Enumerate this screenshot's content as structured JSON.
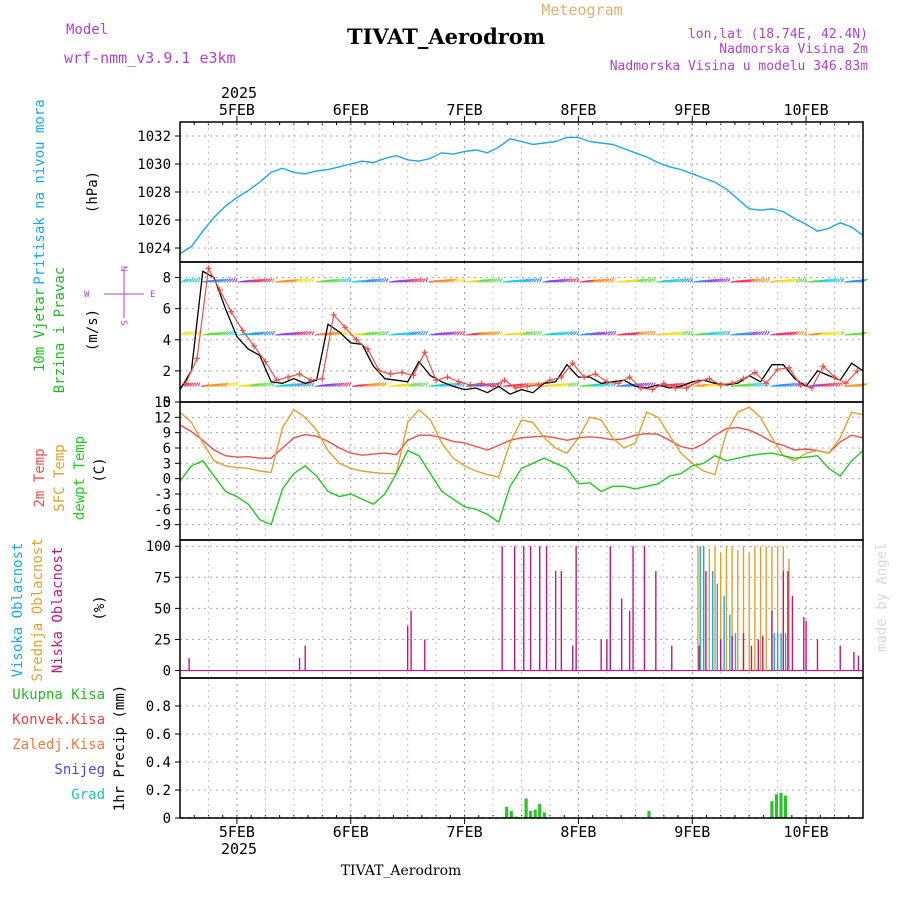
{
  "header": {
    "model_label": "Model",
    "model_name": "wrf-nmm_v3.9.1 e3km",
    "title": "TIVAT_Aerodrom",
    "subtitle": "Meteogram",
    "coords": "lon,lat (18.74E, 42.4N)",
    "elevation": "Nadmorska Visina 2m",
    "model_elevation": "Nadmorska Visina u modelu 346.83m",
    "watermark": "made by Angel",
    "footer": "TIVAT_Aerodrom"
  },
  "colors": {
    "pressure": "#1aa7e8",
    "temp2m": "#e8504a",
    "sfc_temp": "#e0a030",
    "dewpoint": "#22c822",
    "high_cloud": "#1aa7e8",
    "mid_cloud": "#e0a030",
    "low_cloud": "#c0187a",
    "precip": "#2ec02e",
    "wind_speed": "#000000",
    "gust": "#e8504a",
    "label_purple": "#b040d0",
    "label_orange": "#e0a040"
  },
  "chart_data": {
    "type": "line",
    "time_axis": {
      "year": "2025",
      "range_days": [
        4.5,
        10.5
      ],
      "ticks": [
        5,
        6,
        7,
        8,
        9,
        10
      ],
      "tick_labels": [
        "5FEB",
        "6FEB",
        "7FEB",
        "8FEB",
        "9FEB",
        "10FEB"
      ]
    },
    "panels": {
      "pressure": {
        "ylabel": "Pritisak na nivou mora",
        "unit": "(hPa)",
        "ylim": [
          1023,
          1033
        ],
        "yticks": [
          1024,
          1026,
          1028,
          1030,
          1032
        ],
        "series": [
          {
            "name": "Pritisak",
            "x": [
              4.5,
              4.6,
              4.7,
              4.8,
              4.9,
              5.0,
              5.1,
              5.2,
              5.3,
              5.4,
              5.5,
              5.6,
              5.7,
              5.8,
              5.9,
              6.0,
              6.1,
              6.2,
              6.3,
              6.4,
              6.5,
              6.6,
              6.7,
              6.8,
              6.9,
              7.0,
              7.1,
              7.2,
              7.3,
              7.4,
              7.5,
              7.6,
              7.7,
              7.8,
              7.9,
              8.0,
              8.1,
              8.2,
              8.3,
              8.4,
              8.5,
              8.6,
              8.7,
              8.8,
              8.9,
              9.0,
              9.1,
              9.2,
              9.3,
              9.4,
              9.5,
              9.6,
              9.7,
              9.8,
              9.9,
              10.0,
              10.1,
              10.2,
              10.3,
              10.4,
              10.5
            ],
            "values": [
              1023.6,
              1024.1,
              1025.2,
              1026.2,
              1027.0,
              1027.6,
              1028.1,
              1028.7,
              1029.4,
              1029.7,
              1029.4,
              1029.3,
              1029.5,
              1029.6,
              1029.8,
              1030.0,
              1030.2,
              1030.1,
              1030.4,
              1030.6,
              1030.3,
              1030.2,
              1030.4,
              1030.8,
              1030.7,
              1030.9,
              1031.0,
              1030.8,
              1031.2,
              1031.8,
              1031.6,
              1031.4,
              1031.5,
              1031.6,
              1031.9,
              1031.9,
              1031.6,
              1031.5,
              1031.4,
              1031.1,
              1030.8,
              1030.5,
              1030.1,
              1029.8,
              1029.6,
              1029.3,
              1029.0,
              1028.7,
              1028.2,
              1027.5,
              1026.8,
              1026.7,
              1026.8,
              1026.6,
              1026.1,
              1025.7,
              1025.2,
              1025.4,
              1025.8,
              1025.5,
              1024.9
            ]
          }
        ]
      },
      "wind": {
        "ylabel_line1": "10m Vjetar",
        "ylabel_line2": "Brzina i Pravac",
        "unit": "(m/s)",
        "compass": [
          "N",
          "E",
          "S",
          "W"
        ],
        "ylim": [
          0,
          9
        ],
        "yticks": [
          0,
          2,
          4,
          6,
          8
        ],
        "barb_levels": [
          1,
          4.3,
          7.7
        ],
        "series": [
          {
            "name": "Brzina vjetra",
            "x": [
              4.5,
              4.6,
              4.7,
              4.8,
              4.9,
              5.0,
              5.1,
              5.2,
              5.3,
              5.4,
              5.5,
              5.6,
              5.7,
              5.8,
              5.9,
              6.0,
              6.1,
              6.2,
              6.3,
              6.4,
              6.5,
              6.6,
              6.7,
              6.8,
              6.9,
              7.0,
              7.1,
              7.2,
              7.3,
              7.4,
              7.5,
              7.6,
              7.7,
              7.8,
              7.9,
              8.0,
              8.1,
              8.2,
              8.3,
              8.4,
              8.5,
              8.6,
              8.7,
              8.8,
              8.9,
              9.0,
              9.1,
              9.2,
              9.3,
              9.4,
              9.5,
              9.6,
              9.7,
              9.8,
              9.9,
              10.0,
              10.1,
              10.2,
              10.3,
              10.4,
              10.5
            ],
            "values": [
              0.8,
              2.0,
              8.4,
              8.0,
              6.0,
              4.2,
              3.4,
              3.0,
              1.3,
              1.2,
              1.5,
              1.2,
              1.4,
              5.0,
              4.5,
              3.8,
              3.7,
              2.3,
              1.5,
              1.4,
              1.3,
              2.6,
              1.7,
              1.3,
              1.0,
              0.8,
              0.9,
              0.6,
              1.0,
              0.5,
              0.8,
              0.6,
              1.2,
              1.3,
              2.4,
              1.6,
              1.6,
              1.2,
              1.3,
              1.4,
              1.0,
              0.9,
              1.1,
              0.9,
              1.0,
              1.3,
              1.4,
              1.2,
              1.1,
              1.2,
              1.7,
              1.3,
              2.4,
              2.4,
              1.5,
              1.0,
              2.0,
              1.7,
              1.4,
              2.5,
              2.0
            ]
          },
          {
            "name": "Udari vjetra",
            "x": [
              4.55,
              4.65,
              4.75,
              4.85,
              4.95,
              5.05,
              5.15,
              5.25,
              5.35,
              5.45,
              5.55,
              5.65,
              5.75,
              5.85,
              5.95,
              6.05,
              6.15,
              6.25,
              6.35,
              6.45,
              6.55,
              6.65,
              6.75,
              6.85,
              6.95,
              7.05,
              7.15,
              7.25,
              7.35,
              7.45,
              7.55,
              7.65,
              7.75,
              7.85,
              7.95,
              8.05,
              8.15,
              8.25,
              8.35,
              8.45,
              8.55,
              8.65,
              8.75,
              8.85,
              8.95,
              9.05,
              9.15,
              9.25,
              9.35,
              9.45,
              9.55,
              9.65,
              9.75,
              9.85,
              9.95,
              10.05,
              10.15,
              10.25,
              10.35,
              10.45
            ],
            "values": [
              1.2,
              2.8,
              8.6,
              7.2,
              5.8,
              4.6,
              3.6,
              2.6,
              1.4,
              1.6,
              1.8,
              1.4,
              1.5,
              5.6,
              4.8,
              4.0,
              3.4,
              2.0,
              1.8,
              1.9,
              1.7,
              3.2,
              1.4,
              1.6,
              1.3,
              1.1,
              1.2,
              1.0,
              1.4,
              0.9,
              1.0,
              1.1,
              1.4,
              1.6,
              2.5,
              1.6,
              1.8,
              1.3,
              1.2,
              1.6,
              0.9,
              0.8,
              1.2,
              0.9,
              0.9,
              1.3,
              1.5,
              1.1,
              1.2,
              1.5,
              1.9,
              1.2,
              2.1,
              2.2,
              1.1,
              0.9,
              2.3,
              1.6,
              1.2,
              2.0
            ]
          }
        ]
      },
      "temperature": {
        "ylabel_line1": "2m Temp",
        "ylabel_line2": "SFC Temp",
        "ylabel_line3": "dewpt Temp",
        "unit": "(C)",
        "ylim": [
          -12,
          15
        ],
        "yticks": [
          -9,
          -6,
          -3,
          0,
          3,
          6,
          9,
          12,
          15
        ],
        "x": [
          4.5,
          4.6,
          4.7,
          4.8,
          4.9,
          5.0,
          5.1,
          5.2,
          5.3,
          5.4,
          5.5,
          5.6,
          5.7,
          5.8,
          5.9,
          6.0,
          6.1,
          6.2,
          6.3,
          6.4,
          6.5,
          6.6,
          6.7,
          6.8,
          6.9,
          7.0,
          7.1,
          7.2,
          7.3,
          7.4,
          7.5,
          7.6,
          7.7,
          7.8,
          7.9,
          8.0,
          8.1,
          8.2,
          8.3,
          8.4,
          8.5,
          8.6,
          8.7,
          8.8,
          8.9,
          9.0,
          9.1,
          9.2,
          9.3,
          9.4,
          9.5,
          9.6,
          9.7,
          9.8,
          9.9,
          10.0,
          10.1,
          10.2,
          10.3,
          10.4,
          10.5
        ],
        "series": [
          {
            "name": "2m Temp",
            "values": [
              10.5,
              9.2,
              7.5,
              5.6,
              4.5,
              4.2,
              4.3,
              4.0,
              4.0,
              6.0,
              8.0,
              8.6,
              8.3,
              7.3,
              6.0,
              5.0,
              4.6,
              4.8,
              5.0,
              4.7,
              7.5,
              8.5,
              8.5,
              8.0,
              7.3,
              7.0,
              6.3,
              5.6,
              6.5,
              7.5,
              8.0,
              8.2,
              8.3,
              8.0,
              7.5,
              8.0,
              8.2,
              8.0,
              7.6,
              7.8,
              8.5,
              8.8,
              8.7,
              7.5,
              6.3,
              5.8,
              6.8,
              8.5,
              9.8,
              10.0,
              9.5,
              8.5,
              7.2,
              6.5,
              5.6,
              5.8,
              5.5,
              5.0,
              7.2,
              8.5,
              8.0
            ]
          },
          {
            "name": "SFC Temp",
            "values": [
              13.0,
              11.0,
              7.0,
              3.5,
              2.5,
              2.2,
              2.0,
              1.5,
              1.2,
              10.0,
              13.5,
              12.0,
              9.5,
              5.5,
              3.0,
              2.0,
              1.5,
              1.2,
              1.0,
              1.0,
              11.0,
              13.5,
              11.5,
              7.0,
              4.0,
              2.5,
              1.5,
              0.8,
              0.3,
              7.0,
              11.5,
              11.0,
              8.0,
              6.0,
              5.0,
              8.0,
              12.0,
              11.5,
              8.0,
              6.0,
              7.0,
              13.0,
              12.0,
              8.5,
              5.0,
              3.0,
              1.5,
              0.8,
              9.0,
              13.0,
              14.0,
              12.0,
              8.0,
              4.5,
              3.5,
              5.0,
              5.5,
              5.0,
              8.0,
              13.0,
              12.5
            ]
          },
          {
            "name": "dewpt Temp",
            "values": [
              -0.5,
              2.5,
              3.5,
              0.5,
              -2.5,
              -3.5,
              -5.0,
              -8.0,
              -9.0,
              -2.0,
              1.0,
              2.5,
              0.5,
              -2.5,
              -3.5,
              -3.0,
              -4.0,
              -5.0,
              -3.0,
              1.0,
              5.5,
              4.5,
              1.0,
              -2.5,
              -4.0,
              -5.5,
              -6.0,
              -7.0,
              -8.5,
              -1.5,
              2.0,
              3.0,
              4.0,
              3.0,
              2.0,
              -1.0,
              -0.8,
              -2.5,
              -1.5,
              -1.5,
              -2.0,
              -1.5,
              -1.0,
              0.5,
              1.0,
              2.5,
              3.0,
              4.5,
              3.5,
              4.0,
              4.5,
              4.8,
              5.0,
              4.5,
              4.0,
              4.2,
              4.5,
              2.0,
              0.5,
              3.5,
              5.5
            ]
          }
        ]
      },
      "clouds": {
        "ylabel_line1": "Visoka Oblacnost",
        "ylabel_line2": "Srednja Oblacnost",
        "ylabel_line3": "Niska Oblacnost",
        "unit": "(%)",
        "ylim": [
          -6,
          105
        ],
        "yticks": [
          0,
          25,
          50,
          75,
          100
        ],
        "series": [
          {
            "name": "Niska Oblacnost",
            "x": [
              4.58,
              5.55,
              5.6,
              6.5,
              6.53,
              6.65,
              7.33,
              7.44,
              7.52,
              7.58,
              7.66,
              7.72,
              7.8,
              7.85,
              7.95,
              7.98,
              8.2,
              8.25,
              8.28,
              8.38,
              8.45,
              8.48,
              8.58,
              8.68,
              8.82,
              9.06,
              9.12,
              9.25,
              9.35,
              9.45,
              9.52,
              9.58,
              9.62,
              9.7,
              9.8,
              9.84,
              9.88,
              9.98,
              10.0,
              10.1,
              10.3,
              10.42,
              10.46
            ],
            "values": [
              10,
              10,
              20,
              36,
              48,
              25,
              100,
              100,
              100,
              100,
              100,
              100,
              80,
              80,
              20,
              100,
              25,
              25,
              100,
              58,
              48,
              100,
              100,
              80,
              20,
              20,
              80,
              25,
              28,
              30,
              20,
              25,
              28,
              48,
              80,
              80,
              60,
              43,
              40,
              25,
              20,
              15,
              12
            ]
          },
          {
            "name": "Srednja Oblacnost",
            "x": [
              9.05,
              9.1,
              9.15,
              9.2,
              9.25,
              9.3,
              9.35,
              9.4,
              9.45,
              9.5,
              9.55,
              9.6,
              9.65,
              9.7,
              9.75,
              9.8,
              9.85
            ],
            "values": [
              100,
              100,
              98,
              100,
              95,
              100,
              100,
              97,
              100,
              95,
              100,
              100,
              100,
              100,
              100,
              100,
              90
            ]
          },
          {
            "name": "Visoka Oblacnost",
            "x": [
              9.07,
              9.1,
              9.18,
              9.22,
              9.28,
              9.33,
              9.38,
              9.72,
              9.75,
              9.78,
              9.82
            ],
            "values": [
              100,
              100,
              80,
              70,
              60,
              45,
              30,
              30,
              30,
              30,
              30
            ]
          }
        ]
      },
      "precip": {
        "ylabel": "1hr Precip (mm)",
        "labels": [
          "Ukupna Kisa",
          "Konvek.Kisa",
          "Zaledj.Kisa",
          "Snijeg",
          "Grad"
        ],
        "ylim": [
          0,
          1.0
        ],
        "yticks": [
          0,
          0.2,
          0.4,
          0.6,
          0.8
        ],
        "x": [
          7.37,
          7.41,
          7.45,
          7.54,
          7.58,
          7.62,
          7.66,
          7.7,
          8.62,
          9.7,
          9.74,
          9.78,
          9.82
        ],
        "values": [
          0.08,
          0.05,
          0.01,
          0.14,
          0.05,
          0.06,
          0.1,
          0.04,
          0.05,
          0.12,
          0.17,
          0.18,
          0.16
        ]
      }
    }
  }
}
